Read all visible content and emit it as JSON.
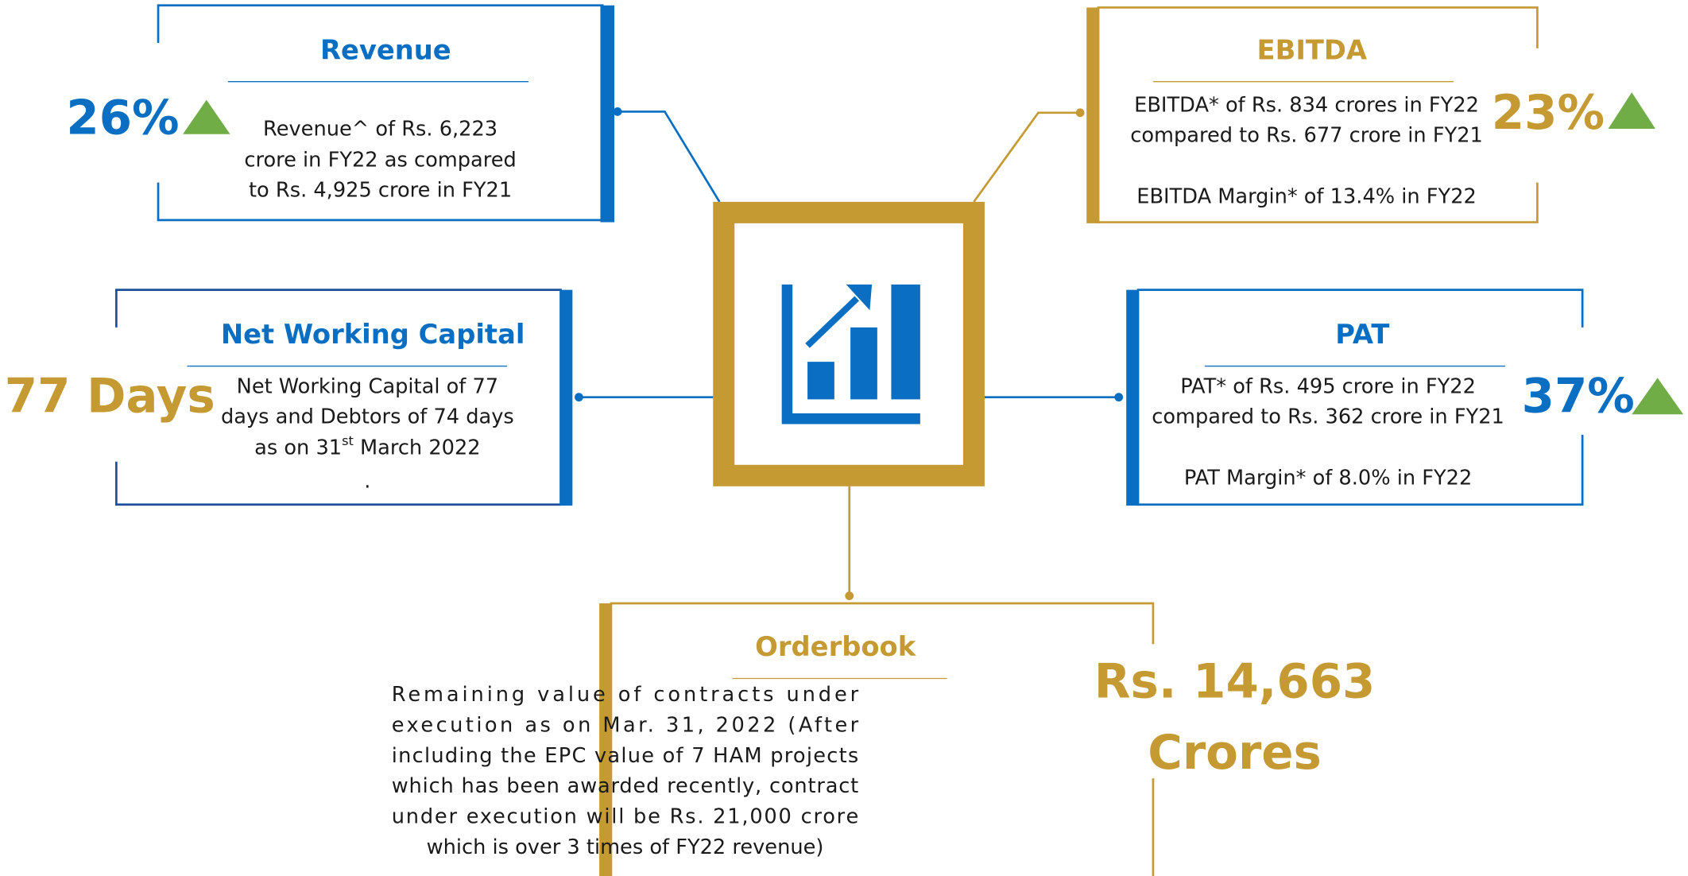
{
  "revenue": {
    "title": "Revenue",
    "metric": "26%",
    "text": [
      "Revenue^ of Rs. 6,223",
      "crore in FY22 as compared",
      "to Rs. 4,925 crore in FY21"
    ]
  },
  "ebitda": {
    "title": "EBITDA",
    "metric": "23%",
    "text": [
      "EBITDA* of Rs. 834 crores in FY22",
      "compared to Rs. 677 crore in FY21",
      "EBITDA Margin* of 13.4% in FY22"
    ]
  },
  "net_working_capital": {
    "title": "Net Working Capital",
    "metric": "77 Days",
    "text": [
      "Net Working Capital of 77",
      "days and Debtors of 74 days",
      [
        "as on 31",
        "st",
        " March 2022"
      ],
      "."
    ]
  },
  "pat": {
    "title": "PAT",
    "metric": "37%",
    "text": [
      "PAT* of Rs. 495 crore in FY22",
      "compared to Rs. 362 crore in  FY21",
      "PAT Margin* of 8.0% in FY22"
    ]
  },
  "orderbook": {
    "title": "Orderbook",
    "metric": [
      "Rs. 14,663",
      "Crores"
    ],
    "text": [
      "Remaining value of contracts under",
      "execution as on Mar. 31, 2022 (After",
      "including the EPC value of 7 HAM projects",
      "which has been awarded recently, contract",
      "under execution will be Rs. 21,000 crore",
      "which is over 3 times of FY22 revenue)"
    ]
  }
}
